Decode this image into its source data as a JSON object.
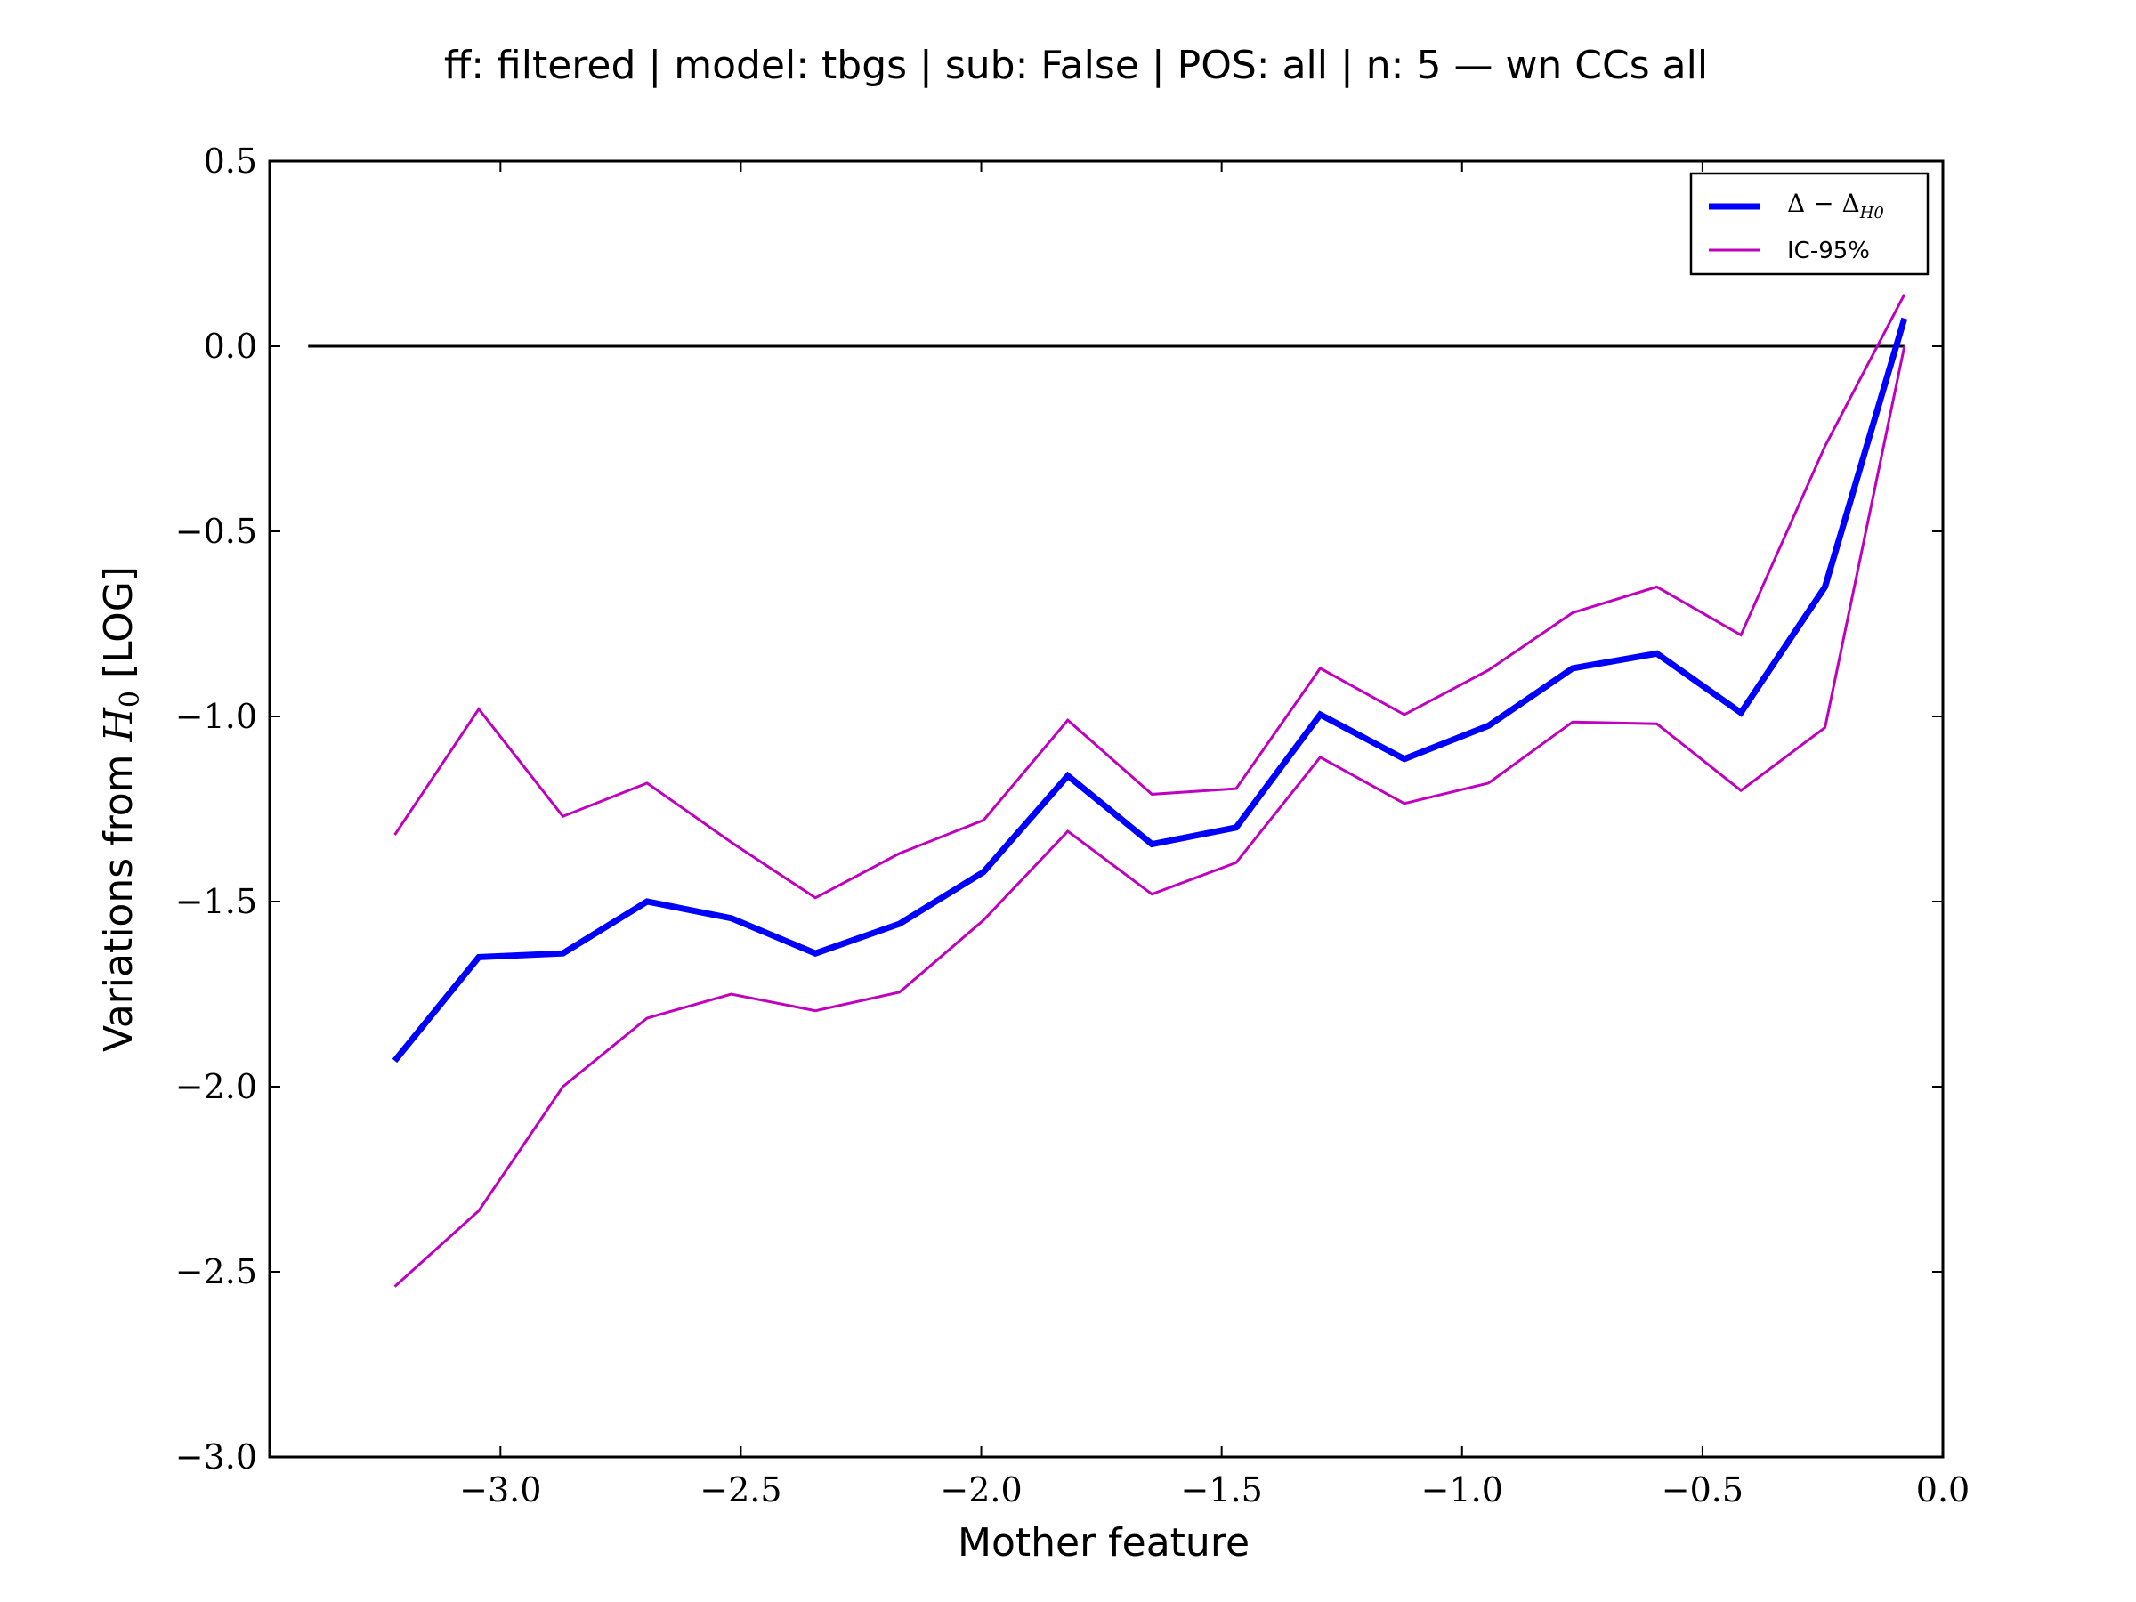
{
  "chart_data": {
    "type": "line",
    "title": "ff: filtered | model: tbgs | sub: False | POS: all | n: 5 — wn CCs all",
    "xlabel_prefix": "Mother feature",
    "ylabel_main": "Variations from ",
    "ylabel_symbol": "H",
    "ylabel_subscript": "0",
    "ylabel_suffix": " [LOG]",
    "xlim": [
      -3.48,
      0.0
    ],
    "ylim": [
      -3.0,
      0.5
    ],
    "x_ticks": [
      -3.0,
      -2.5,
      -2.0,
      -1.5,
      -1.0,
      -0.5,
      0.0
    ],
    "x_tick_labels": [
      "−3.0",
      "−2.5",
      "−2.0",
      "−1.5",
      "−1.0",
      "−0.5",
      "0.0"
    ],
    "y_ticks": [
      0.5,
      0.0,
      -0.5,
      -1.0,
      -1.5,
      -2.0,
      -2.5,
      -3.0
    ],
    "y_tick_labels": [
      "0.5",
      "0.0",
      "−0.5",
      "−1.0",
      "−1.5",
      "−2.0",
      "−2.5",
      "−3.0"
    ],
    "reference_line": {
      "y": 0.0,
      "x_start": -3.4,
      "x_end": -0.08,
      "color": "#000000"
    },
    "x": [
      -3.22,
      -3.045,
      -2.87,
      -2.695,
      -2.52,
      -2.345,
      -2.17,
      -1.995,
      -1.82,
      -1.645,
      -1.47,
      -1.295,
      -1.12,
      -0.945,
      -0.77,
      -0.595,
      -0.42,
      -0.245,
      -0.08
    ],
    "series": [
      {
        "name": "Δ − Δ",
        "name_subscript": "H0",
        "color": "#0000ff",
        "role": "main",
        "values": [
          -1.93,
          -1.65,
          -1.64,
          -1.5,
          -1.545,
          -1.64,
          -1.56,
          -1.42,
          -1.16,
          -1.345,
          -1.3,
          -0.995,
          -1.115,
          -1.025,
          -0.87,
          -0.83,
          -0.99,
          -0.65,
          0.075
        ]
      },
      {
        "name": "IC-95%",
        "color": "#bf00bf",
        "role": "upper",
        "values": [
          -1.32,
          -0.98,
          -1.27,
          -1.18,
          -1.34,
          -1.49,
          -1.37,
          -1.28,
          -1.01,
          -1.21,
          -1.195,
          -0.87,
          -0.995,
          -0.875,
          -0.72,
          -0.65,
          -0.78,
          -0.27,
          0.14
        ]
      },
      {
        "name": "",
        "color": "#bf00bf",
        "role": "lower",
        "values": [
          -2.54,
          -2.335,
          -2.0,
          -1.815,
          -1.75,
          -1.795,
          -1.745,
          -1.55,
          -1.31,
          -1.48,
          -1.395,
          -1.11,
          -1.235,
          -1.18,
          -1.015,
          -1.02,
          -1.2,
          -1.03,
          0.0
        ]
      }
    ],
    "legend_position": "top-right",
    "grid": false
  }
}
